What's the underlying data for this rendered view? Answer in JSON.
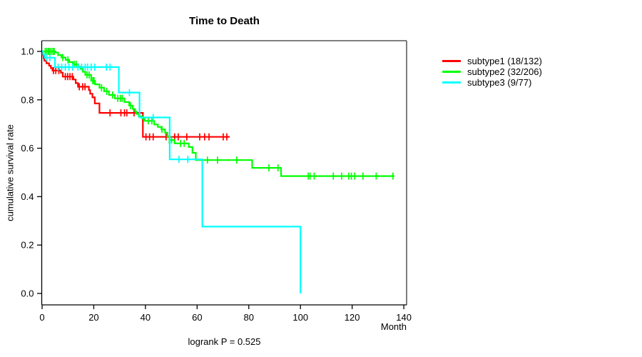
{
  "title": "Time to Death",
  "footer": "logrank P = 0.525",
  "chart_data": {
    "type": "line",
    "variant": "kaplan-meier-step",
    "title": "Time to Death",
    "xlabel": "Month",
    "ylabel": "cumulative survival rate",
    "annotation": "logrank P = 0.525",
    "xlim": [
      0,
      140
    ],
    "ylim": [
      0.0,
      1.0
    ],
    "grid": "off",
    "legend_position": "right-outside",
    "x_ticks": [
      {
        "v": 0,
        "label": "0"
      },
      {
        "v": 20,
        "label": "20"
      },
      {
        "v": 40,
        "label": "40"
      },
      {
        "v": 60,
        "label": "60"
      },
      {
        "v": 80,
        "label": "80"
      },
      {
        "v": 100,
        "label": "100"
      },
      {
        "v": 120,
        "label": "120"
      },
      {
        "v": 140,
        "label": "140"
      }
    ],
    "y_ticks": [
      {
        "v": 0.0,
        "label": "0.0"
      },
      {
        "v": 0.2,
        "label": "0.2"
      },
      {
        "v": 0.4,
        "label": "0.4"
      },
      {
        "v": 0.6,
        "label": "0.6"
      },
      {
        "v": 0.8,
        "label": "0.8"
      },
      {
        "v": 1.0,
        "label": "1.0"
      }
    ],
    "series": [
      {
        "name": "subtype1 (18/132)",
        "color": "#ff0000",
        "events_total": "18/132",
        "end_month": 72.6,
        "steps": [
          [
            0,
            1.0
          ],
          [
            0.2,
            0.985
          ],
          [
            0.6,
            0.971
          ],
          [
            0.9,
            0.961
          ],
          [
            1.7,
            0.951
          ],
          [
            2.7,
            0.941
          ],
          [
            3.4,
            0.931
          ],
          [
            4.0,
            0.921
          ],
          [
            7.3,
            0.912
          ],
          [
            8.0,
            0.896
          ],
          [
            12.1,
            0.884
          ],
          [
            13.0,
            0.869
          ],
          [
            13.9,
            0.854
          ],
          [
            18.1,
            0.84
          ],
          [
            18.6,
            0.825
          ],
          [
            19.5,
            0.81
          ],
          [
            20.4,
            0.785
          ],
          [
            22.2,
            0.746
          ],
          [
            39.0,
            0.647
          ]
        ],
        "censors": [
          [
            4.4,
            0.921
          ],
          [
            5.3,
            0.921
          ],
          [
            6.5,
            0.921
          ],
          [
            9.0,
            0.896
          ],
          [
            9.9,
            0.896
          ],
          [
            10.8,
            0.896
          ],
          [
            11.7,
            0.896
          ],
          [
            14.4,
            0.854
          ],
          [
            15.7,
            0.854
          ],
          [
            16.6,
            0.854
          ],
          [
            26.3,
            0.746
          ],
          [
            30.5,
            0.746
          ],
          [
            31.9,
            0.746
          ],
          [
            32.8,
            0.746
          ],
          [
            35.6,
            0.746
          ],
          [
            40.2,
            0.647
          ],
          [
            41.6,
            0.647
          ],
          [
            43.0,
            0.647
          ],
          [
            48.0,
            0.647
          ],
          [
            51.3,
            0.647
          ],
          [
            52.7,
            0.647
          ],
          [
            56.0,
            0.647
          ],
          [
            61.0,
            0.647
          ],
          [
            62.9,
            0.647
          ],
          [
            64.6,
            0.647
          ],
          [
            70.1,
            0.647
          ],
          [
            71.5,
            0.647
          ]
        ]
      },
      {
        "name": "subtype2 (32/206)",
        "color": "#00ff00",
        "events_total": "32/206",
        "end_month": 136.3,
        "steps": [
          [
            0,
            1.0
          ],
          [
            5.2,
            0.995
          ],
          [
            6.2,
            0.985
          ],
          [
            7.5,
            0.975
          ],
          [
            9.1,
            0.965
          ],
          [
            10.5,
            0.956
          ],
          [
            11.9,
            0.946
          ],
          [
            14.0,
            0.937
          ],
          [
            14.9,
            0.928
          ],
          [
            15.8,
            0.916
          ],
          [
            16.7,
            0.903
          ],
          [
            19.0,
            0.879
          ],
          [
            20.5,
            0.864
          ],
          [
            22.2,
            0.85
          ],
          [
            24.0,
            0.835
          ],
          [
            25.9,
            0.82
          ],
          [
            28.2,
            0.806
          ],
          [
            31.9,
            0.791
          ],
          [
            33.7,
            0.776
          ],
          [
            35.1,
            0.762
          ],
          [
            36.0,
            0.752
          ],
          [
            36.5,
            0.742
          ],
          [
            37.4,
            0.732
          ],
          [
            38.8,
            0.722
          ],
          [
            39.7,
            0.713
          ],
          [
            43.4,
            0.698
          ],
          [
            44.8,
            0.688
          ],
          [
            46.2,
            0.678
          ],
          [
            47.6,
            0.664
          ],
          [
            48.5,
            0.649
          ],
          [
            49.4,
            0.634
          ],
          [
            51.3,
            0.62
          ],
          [
            56.8,
            0.605
          ],
          [
            58.2,
            0.581
          ],
          [
            59.5,
            0.551
          ],
          [
            81.3,
            0.519
          ],
          [
            92.5,
            0.485
          ]
        ],
        "censors": [
          [
            1.2,
            1.0
          ],
          [
            1.8,
            1.0
          ],
          [
            2.4,
            1.0
          ],
          [
            2.9,
            1.0
          ],
          [
            3.5,
            1.0
          ],
          [
            4.2,
            1.0
          ],
          [
            4.7,
            1.0
          ],
          [
            8.0,
            0.975
          ],
          [
            10.0,
            0.965
          ],
          [
            12.5,
            0.946
          ],
          [
            13.2,
            0.946
          ],
          [
            17.4,
            0.903
          ],
          [
            18.2,
            0.903
          ],
          [
            19.6,
            0.879
          ],
          [
            20.1,
            0.879
          ],
          [
            23.0,
            0.85
          ],
          [
            25.0,
            0.835
          ],
          [
            27.3,
            0.82
          ],
          [
            29.3,
            0.806
          ],
          [
            30.3,
            0.806
          ],
          [
            31.0,
            0.806
          ],
          [
            34.2,
            0.776
          ],
          [
            41.1,
            0.713
          ],
          [
            42.5,
            0.713
          ],
          [
            46.4,
            0.678
          ],
          [
            49.2,
            0.634
          ],
          [
            50.1,
            0.634
          ],
          [
            53.6,
            0.62
          ],
          [
            55.0,
            0.62
          ],
          [
            64.0,
            0.551
          ],
          [
            67.9,
            0.551
          ],
          [
            75.3,
            0.551
          ],
          [
            87.8,
            0.519
          ],
          [
            91.3,
            0.519
          ],
          [
            103.0,
            0.485
          ],
          [
            103.7,
            0.485
          ],
          [
            105.3,
            0.485
          ],
          [
            112.7,
            0.485
          ],
          [
            115.9,
            0.485
          ],
          [
            118.7,
            0.485
          ],
          [
            119.7,
            0.485
          ],
          [
            121.0,
            0.485
          ],
          [
            124.2,
            0.485
          ],
          [
            129.3,
            0.485
          ],
          [
            135.8,
            0.485
          ]
        ]
      },
      {
        "name": "subtype3 (9/77)",
        "color": "#00ffff",
        "events_total": "9/77",
        "end_month": 100,
        "steps": [
          [
            0,
            1.0
          ],
          [
            0.4,
            0.987
          ],
          [
            1.0,
            0.974
          ],
          [
            5.0,
            0.935
          ],
          [
            29.7,
            0.83
          ],
          [
            37.7,
            0.727
          ],
          [
            49.4,
            0.554
          ],
          [
            62.0,
            0.276
          ],
          [
            100,
            0.0
          ]
        ],
        "censors": [
          [
            1.8,
            0.974
          ],
          [
            3.0,
            0.974
          ],
          [
            6.2,
            0.935
          ],
          [
            7.6,
            0.935
          ],
          [
            9.0,
            0.935
          ],
          [
            10.4,
            0.935
          ],
          [
            11.8,
            0.935
          ],
          [
            13.9,
            0.935
          ],
          [
            15.3,
            0.935
          ],
          [
            16.7,
            0.935
          ],
          [
            17.6,
            0.935
          ],
          [
            19.0,
            0.935
          ],
          [
            20.4,
            0.935
          ],
          [
            24.9,
            0.935
          ],
          [
            26.3,
            0.935
          ],
          [
            33.8,
            0.83
          ],
          [
            43.0,
            0.727
          ],
          [
            53.0,
            0.554
          ],
          [
            56.4,
            0.554
          ]
        ]
      }
    ]
  },
  "colors": {
    "background": "#ffffff",
    "axis": "#000000",
    "box_top": "#808080",
    "box_right": "#5e5e5e",
    "series1": "#ff0000",
    "series2": "#00ff00",
    "series3": "#00ffff"
  },
  "legend": {
    "items": [
      {
        "label": "subtype1 (18/132)",
        "color": "#ff0000"
      },
      {
        "label": "subtype2 (32/206)",
        "color": "#00ff00"
      },
      {
        "label": "subtype3 (9/77)",
        "color": "#00ffff"
      }
    ]
  }
}
